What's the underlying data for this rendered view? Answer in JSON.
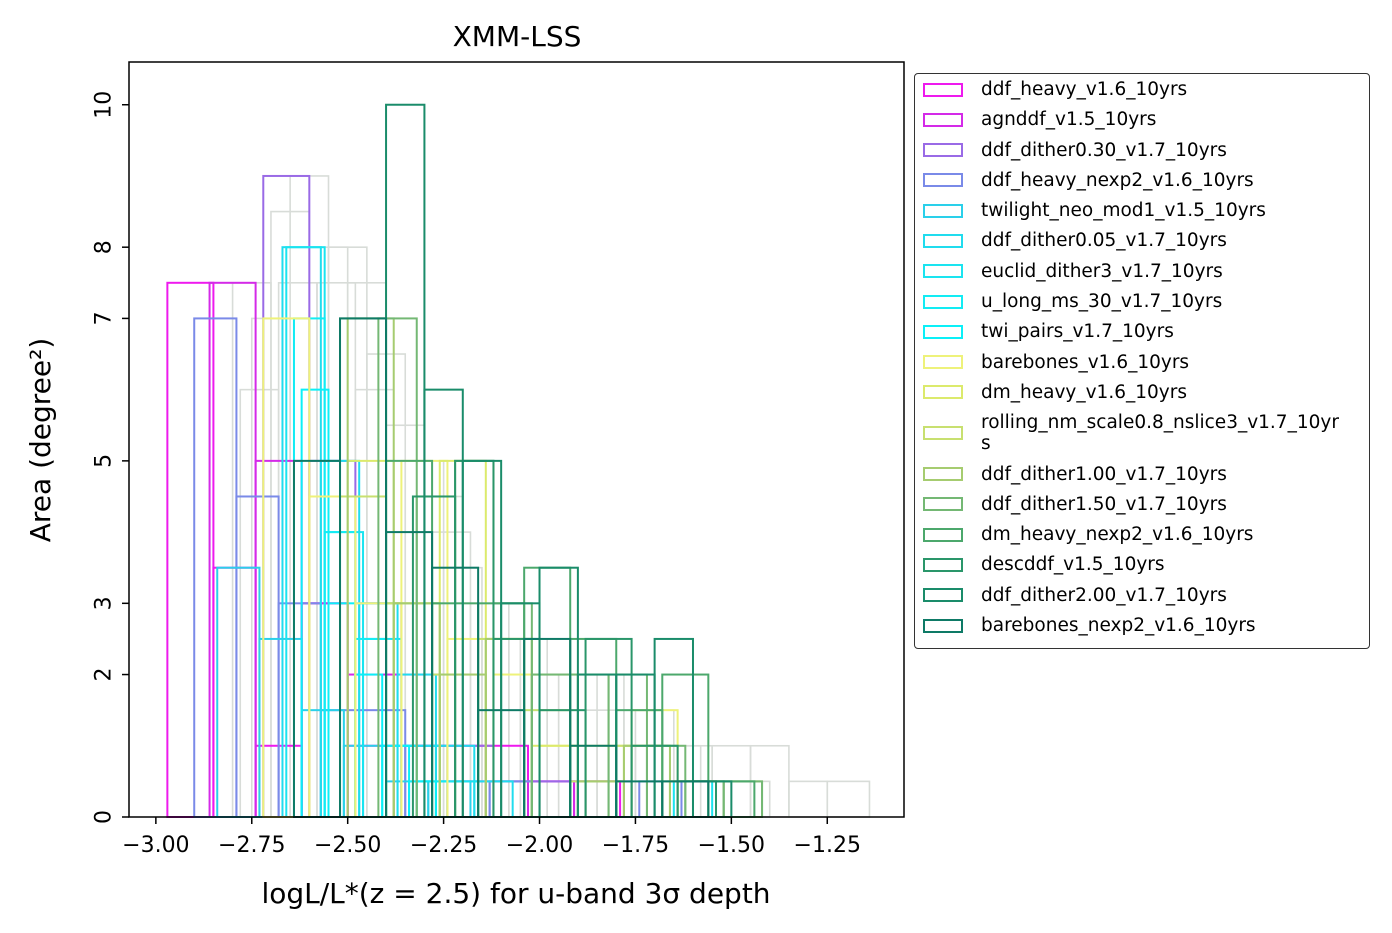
{
  "chart_data": {
    "type": "histogram",
    "title": "XMM-LSS",
    "xlabel": "logL/L*(z = 2.5) for u-band 3σ depth",
    "ylabel": "Area (degree²)",
    "xlim": [
      -3.07,
      -1.05
    ],
    "ylim": [
      0,
      10.6
    ],
    "x_ticks": [
      "−3.00",
      "−2.75",
      "−2.50",
      "−2.25",
      "−2.00",
      "−1.75",
      "−1.50",
      "−1.25"
    ],
    "x_tick_values": [
      -3.0,
      -2.75,
      -2.5,
      -2.25,
      -2.0,
      -1.75,
      -1.5,
      -1.25
    ],
    "y_ticks": [
      "0",
      "2",
      "3",
      "5",
      "7",
      "8",
      "10"
    ],
    "y_tick_values": [
      0,
      2,
      3,
      5,
      7,
      8,
      10
    ],
    "grid": false,
    "legend_position": "outside-right",
    "background_series_color": "#d8dcd8",
    "series": [
      {
        "name": "ddf_heavy_v1.6_10yrs",
        "color": "#ee1aee",
        "bins": [
          [
            -2.97,
            -2.85,
            7.5
          ],
          [
            -2.85,
            -2.74,
            3.5
          ],
          [
            -2.74,
            -2.62,
            1
          ],
          [
            -2.62,
            -2.5,
            3
          ],
          [
            -2.5,
            -2.38,
            1
          ],
          [
            -2.38,
            -2.26,
            2
          ],
          [
            -2.26,
            -2.14,
            1
          ],
          [
            -2.14,
            -2.03,
            1
          ],
          [
            -2.03,
            -1.91,
            0.5
          ],
          [
            -1.91,
            -1.79,
            0.5
          ]
        ]
      },
      {
        "name": "agnddf_v1.5_10yrs",
        "color": "#d42ae8",
        "bins": [
          [
            -2.86,
            -2.74,
            7.5
          ],
          [
            -2.74,
            -2.62,
            5
          ],
          [
            -2.62,
            -2.5,
            3
          ],
          [
            -2.5,
            -2.38,
            2
          ],
          [
            -2.38,
            -2.26,
            1
          ],
          [
            -2.26,
            -2.14,
            0.5
          ],
          [
            -2.14,
            -2.03,
            0.5
          ],
          [
            -2.03,
            -1.91,
            0.5
          ]
        ]
      },
      {
        "name": "ddf_dither0.30_v1.7_10yrs",
        "color": "#9a6ae6",
        "bins": [
          [
            -2.72,
            -2.6,
            9
          ],
          [
            -2.6,
            -2.48,
            5
          ],
          [
            -2.48,
            -2.36,
            3
          ],
          [
            -2.36,
            -2.24,
            1
          ],
          [
            -2.24,
            -2.12,
            1
          ],
          [
            -2.12,
            -2.0,
            0.5
          ],
          [
            -2.0,
            -1.88,
            0.5
          ],
          [
            -1.88,
            -1.76,
            0.5
          ]
        ]
      },
      {
        "name": "ddf_heavy_nexp2_v1.6_10yrs",
        "color": "#7a8ae8",
        "bins": [
          [
            -2.9,
            -2.79,
            7
          ],
          [
            -2.79,
            -2.68,
            4.5
          ],
          [
            -2.68,
            -2.57,
            3
          ],
          [
            -2.57,
            -2.46,
            1.5
          ],
          [
            -2.46,
            -2.35,
            1.5
          ],
          [
            -2.35,
            -2.24,
            1
          ],
          [
            -2.24,
            -2.13,
            0.5
          ],
          [
            -2.13,
            -2.02,
            0.5
          ],
          [
            -1.74,
            -1.63,
            0.5
          ],
          [
            -1.63,
            -1.52,
            0.5
          ]
        ]
      },
      {
        "name": "twilight_neo_mod1_v1.5_10yrs",
        "color": "#2ad0ea",
        "bins": [
          [
            -2.84,
            -2.73,
            3.5
          ],
          [
            -2.73,
            -2.62,
            2.5
          ],
          [
            -2.62,
            -2.51,
            1.5
          ],
          [
            -2.51,
            -2.4,
            1
          ],
          [
            -2.4,
            -2.29,
            0.5
          ],
          [
            -2.29,
            -2.18,
            0.5
          ]
        ]
      },
      {
        "name": "ddf_dither0.05_v1.7_10yrs",
        "color": "#20dcee",
        "bins": [
          [
            -2.67,
            -2.57,
            8
          ],
          [
            -2.57,
            -2.47,
            5
          ],
          [
            -2.47,
            -2.37,
            3
          ],
          [
            -2.37,
            -2.27,
            2
          ],
          [
            -2.27,
            -2.17,
            1
          ],
          [
            -2.17,
            -2.07,
            0.5
          ]
        ]
      },
      {
        "name": "euclid_dither3_v1.7_10yrs",
        "color": "#1ae4f0",
        "bins": [
          [
            -2.66,
            -2.56,
            8
          ],
          [
            -2.56,
            -2.46,
            4
          ],
          [
            -2.46,
            -2.36,
            2.5
          ],
          [
            -2.36,
            -2.26,
            1
          ],
          [
            -2.26,
            -2.16,
            0.5
          ],
          [
            -1.65,
            -1.55,
            0.5
          ]
        ]
      },
      {
        "name": "u_long_ms_30_v1.7_10yrs",
        "color": "#12ecf4",
        "bins": [
          [
            -2.64,
            -2.56,
            7
          ],
          [
            -2.56,
            -2.48,
            4
          ],
          [
            -2.48,
            -2.4,
            2.5
          ],
          [
            -2.4,
            -2.32,
            1
          ],
          [
            -2.32,
            -2.24,
            0.5
          ]
        ]
      },
      {
        "name": "twi_pairs_v1.7_10yrs",
        "color": "#0af0f8",
        "bins": [
          [
            -2.62,
            -2.55,
            6
          ],
          [
            -2.55,
            -2.48,
            3
          ],
          [
            -2.48,
            -2.41,
            2
          ],
          [
            -2.41,
            -2.34,
            1
          ],
          [
            -2.34,
            -2.27,
            0.5
          ]
        ]
      },
      {
        "name": "barebones_v1.6_10yrs",
        "color": "#eef27a",
        "bins": [
          [
            -2.72,
            -2.6,
            7
          ],
          [
            -2.6,
            -2.48,
            4.5
          ],
          [
            -2.48,
            -2.36,
            3
          ],
          [
            -2.36,
            -2.24,
            5
          ],
          [
            -2.24,
            -2.12,
            2.5
          ],
          [
            -2.12,
            -2.0,
            2
          ],
          [
            -2.0,
            -1.88,
            1
          ],
          [
            -1.88,
            -1.76,
            1
          ],
          [
            -1.76,
            -1.64,
            1.5
          ],
          [
            -1.64,
            -1.52,
            0.5
          ]
        ]
      },
      {
        "name": "dm_heavy_v1.6_10yrs",
        "color": "#dcea6c",
        "bins": [
          [
            -2.5,
            -2.38,
            5
          ],
          [
            -2.38,
            -2.26,
            3
          ],
          [
            -2.26,
            -2.14,
            5
          ],
          [
            -2.14,
            -2.02,
            2.5
          ],
          [
            -2.02,
            -1.9,
            1
          ],
          [
            -1.9,
            -1.78,
            0.5
          ],
          [
            -1.78,
            -1.66,
            1
          ],
          [
            -1.66,
            -1.54,
            0.5
          ]
        ]
      },
      {
        "name": "rolling_nm_scale0.8_nslice3_v1.7_10yrs",
        "color": "#c8e070",
        "bins": [
          [
            -2.52,
            -2.4,
            4.5
          ],
          [
            -2.4,
            -2.28,
            3
          ],
          [
            -2.28,
            -2.16,
            2
          ],
          [
            -2.16,
            -2.04,
            2.5
          ],
          [
            -2.04,
            -1.92,
            1.5
          ],
          [
            -1.92,
            -1.8,
            0.5
          ],
          [
            -1.8,
            -1.68,
            1
          ],
          [
            -1.68,
            -1.56,
            0.5
          ]
        ]
      },
      {
        "name": "ddf_dither1.00_v1.7_10yrs",
        "color": "#a6cc70",
        "bins": [
          [
            -2.5,
            -2.38,
            7
          ],
          [
            -2.38,
            -2.26,
            3
          ],
          [
            -2.26,
            -2.14,
            2
          ],
          [
            -2.14,
            -2.02,
            2.5
          ],
          [
            -2.02,
            -1.9,
            2
          ],
          [
            -1.9,
            -1.78,
            0.5
          ],
          [
            -1.78,
            -1.66,
            1
          ],
          [
            -1.66,
            -1.54,
            0.5
          ],
          [
            -1.54,
            -1.42,
            0.5
          ]
        ]
      },
      {
        "name": "ddf_dither1.50_v1.7_10yrs",
        "color": "#74b874",
        "bins": [
          [
            -2.42,
            -2.32,
            7
          ],
          [
            -2.32,
            -2.22,
            4.5
          ],
          [
            -2.22,
            -2.12,
            5
          ],
          [
            -2.12,
            -2.02,
            3
          ],
          [
            -2.02,
            -1.92,
            2
          ],
          [
            -1.92,
            -1.82,
            2
          ],
          [
            -1.82,
            -1.72,
            2
          ],
          [
            -1.72,
            -1.62,
            1
          ],
          [
            -1.62,
            -1.52,
            0.5
          ],
          [
            -1.52,
            -1.42,
            0.5
          ]
        ]
      },
      {
        "name": "dm_heavy_nexp2_v1.6_10yrs",
        "color": "#4ca86c",
        "bins": [
          [
            -2.52,
            -2.4,
            7
          ],
          [
            -2.4,
            -2.28,
            5
          ],
          [
            -2.28,
            -2.16,
            3
          ],
          [
            -2.16,
            -2.04,
            3
          ],
          [
            -2.04,
            -1.92,
            3.5
          ],
          [
            -1.92,
            -1.8,
            2.5
          ],
          [
            -1.8,
            -1.68,
            1.5
          ],
          [
            -1.68,
            -1.56,
            2
          ],
          [
            -1.56,
            -1.44,
            0.5
          ]
        ]
      },
      {
        "name": "descddf_v1.5_10yrs",
        "color": "#2a966a",
        "bins": [
          [
            -2.33,
            -2.22,
            4.5
          ],
          [
            -2.22,
            -2.12,
            5
          ],
          [
            -2.12,
            -2.0,
            2.5
          ],
          [
            -2.0,
            -1.88,
            1.5
          ],
          [
            -1.88,
            -1.76,
            2.5
          ],
          [
            -1.76,
            -1.64,
            1
          ],
          [
            -1.64,
            -1.54,
            0.5
          ]
        ]
      },
      {
        "name": "ddf_dither2.00_v1.7_10yrs",
        "color": "#1a8c6a",
        "bins": [
          [
            -2.4,
            -2.3,
            10
          ],
          [
            -2.3,
            -2.2,
            6
          ],
          [
            -2.2,
            -2.1,
            5
          ],
          [
            -2.1,
            -2.0,
            3
          ],
          [
            -2.0,
            -1.9,
            3.5
          ],
          [
            -1.9,
            -1.8,
            2
          ],
          [
            -1.8,
            -1.7,
            2
          ],
          [
            -1.7,
            -1.6,
            2.5
          ],
          [
            -1.6,
            -1.5,
            0.5
          ]
        ]
      },
      {
        "name": "barebones_nexp2_v1.6_10yrs",
        "color": "#0e7a66",
        "bins": [
          [
            -2.64,
            -2.52,
            5
          ],
          [
            -2.52,
            -2.4,
            7
          ],
          [
            -2.4,
            -2.28,
            4
          ],
          [
            -2.28,
            -2.16,
            3.5
          ],
          [
            -2.16,
            -2.04,
            1.5
          ],
          [
            -2.04,
            -1.92,
            2.5
          ],
          [
            -1.92,
            -1.8,
            1
          ],
          [
            -1.8,
            -1.68,
            0.5
          ],
          [
            -1.68,
            -1.56,
            0.5
          ]
        ]
      }
    ],
    "background_bins": [
      [
        -2.8,
        -2.7,
        7.5
      ],
      [
        -2.75,
        -2.65,
        7
      ],
      [
        -2.7,
        -2.6,
        8.5
      ],
      [
        -2.65,
        -2.55,
        9
      ],
      [
        -2.6,
        -2.5,
        8
      ],
      [
        -2.55,
        -2.45,
        8
      ],
      [
        -2.5,
        -2.4,
        7.5
      ],
      [
        -2.45,
        -2.35,
        6.5
      ],
      [
        -2.4,
        -2.3,
        5.5
      ],
      [
        -2.35,
        -2.25,
        5
      ],
      [
        -2.3,
        -2.2,
        4.5
      ],
      [
        -2.25,
        -2.15,
        3.5
      ],
      [
        -2.2,
        -2.1,
        3
      ],
      [
        -2.15,
        -2.05,
        2.5
      ],
      [
        -2.1,
        -2.0,
        2
      ],
      [
        -2.05,
        -1.95,
        2
      ],
      [
        -2.0,
        -1.9,
        1.5
      ],
      [
        -1.95,
        -1.85,
        2
      ],
      [
        -1.9,
        -1.8,
        1.5
      ],
      [
        -1.85,
        -1.75,
        1
      ],
      [
        -1.8,
        -1.7,
        1
      ],
      [
        -1.75,
        -1.65,
        1.5
      ],
      [
        -1.7,
        -1.6,
        1
      ],
      [
        -1.65,
        -1.55,
        1
      ],
      [
        -1.6,
        -1.5,
        0.5
      ],
      [
        -1.55,
        -1.45,
        1
      ],
      [
        -1.5,
        -1.4,
        0.5
      ],
      [
        -1.45,
        -1.35,
        1
      ],
      [
        -1.35,
        -1.25,
        0.5
      ],
      [
        -1.25,
        -1.14,
        0.5
      ],
      [
        -2.78,
        -2.68,
        6
      ],
      [
        -2.68,
        -2.58,
        7.5
      ],
      [
        -2.58,
        -2.48,
        7.5
      ],
      [
        -2.48,
        -2.38,
        6
      ],
      [
        -2.38,
        -2.28,
        5
      ],
      [
        -2.28,
        -2.18,
        4
      ],
      [
        -2.18,
        -2.08,
        3
      ],
      [
        -2.08,
        -1.98,
        2.5
      ],
      [
        -1.98,
        -1.88,
        2
      ],
      [
        -1.88,
        -1.78,
        2
      ],
      [
        -1.78,
        -1.68,
        1.5
      ],
      [
        -1.68,
        -1.58,
        1
      ]
    ]
  }
}
